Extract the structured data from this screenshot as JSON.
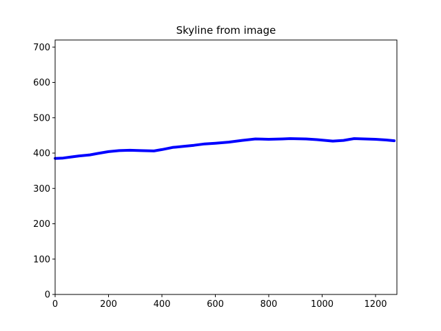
{
  "chart_data": {
    "type": "line",
    "title": "Skyline from image",
    "xlabel": "",
    "ylabel": "",
    "xlim": [
      0,
      1280
    ],
    "ylim": [
      0,
      720
    ],
    "grid": false,
    "x_ticks": [
      0,
      200,
      400,
      600,
      800,
      1000,
      1200
    ],
    "y_ticks": [
      0,
      100,
      200,
      300,
      400,
      500,
      600,
      700
    ],
    "line_color": "#0000ff",
    "series": [
      {
        "x": [
          0,
          30,
          60,
          90,
          130,
          160,
          200,
          240,
          280,
          320,
          370,
          400,
          440,
          480,
          520,
          560,
          600,
          650,
          700,
          750,
          800,
          850,
          880,
          940,
          980,
          1040,
          1080,
          1120,
          1160,
          1200,
          1240,
          1270
        ],
        "y": [
          385,
          386,
          389,
          392,
          395,
          399,
          404,
          407,
          408,
          407,
          406,
          410,
          416,
          419,
          422,
          426,
          428,
          431,
          436,
          440,
          439,
          440,
          441,
          440,
          438,
          434,
          436,
          441,
          440,
          439,
          437,
          435
        ]
      }
    ]
  }
}
